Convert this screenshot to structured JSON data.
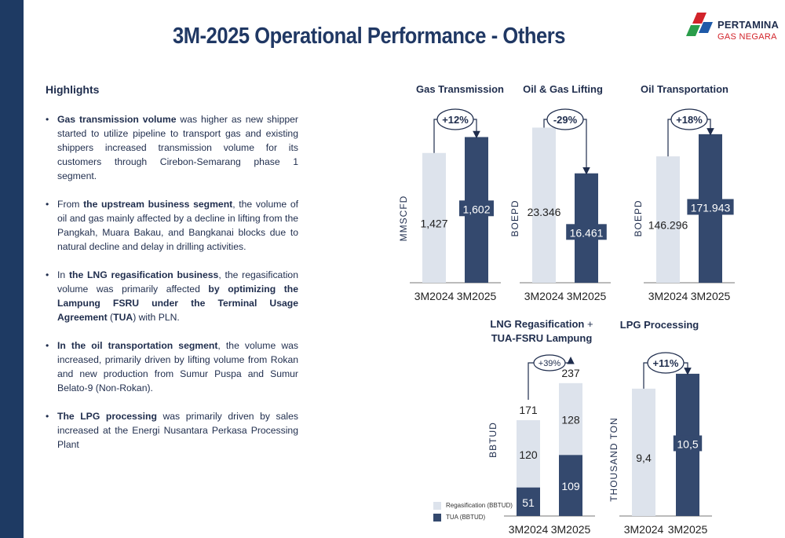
{
  "page": {
    "title": "3M-2025 Operational Performance - Others"
  },
  "logo": {
    "name": "PERTAMINA",
    "sub": "GAS NEGARA"
  },
  "highlights": {
    "title": "Highlights",
    "bullets": [
      {
        "bold": "Gas transmission volume",
        "text": " was higher as new shipper started to utilize pipeline to transport gas and existing shippers increased transmission volume for its customers through Cirebon-Semarang phase 1 segment."
      },
      {
        "pre": "From ",
        "bold": "the upstream business segment",
        "text": ", the volume of oil and gas mainly affected by a decline in lifting from the Pangkah, Muara Bakau, and Bangkanai blocks due to natural decline and delay in drilling activities."
      },
      {
        "pre": "In ",
        "bold": "the LNG regasification business",
        "text": ", the regasification volume was primarily affected ",
        "bold2": "by optimizing the Lampung FSRU under the Terminal Usage Agreement",
        "text2": " (",
        "bold3": "TUA",
        "text3": ") with PLN."
      },
      {
        "bold": "In the oil transportation segment",
        "text": ", the volume was increased, primarily driven by lifting volume from Rokan and new production from Sumur Puspa and Sumur Belato-9 (Non-Rokan)."
      },
      {
        "bold": "The LPG processing",
        "text": " was primarily driven by sales increased at the Energi Nusantara Perkasa Processing Plant"
      }
    ]
  },
  "colors": {
    "light_bar": "#dde3ec",
    "dark_bar": "#34496e",
    "sidebar": "#1e3a63",
    "text": "#1f2d4d"
  },
  "chart_data": [
    {
      "type": "bar",
      "title": "Gas Transmission",
      "ylabel": "MMSCFD",
      "categories": [
        "3M2024",
        "3M2025"
      ],
      "values": [
        1427,
        1602
      ],
      "value_labels": [
        "1,427",
        "1,602"
      ],
      "change_label": "+12%",
      "ylim": [
        0,
        1900
      ]
    },
    {
      "type": "bar",
      "title": "Oil & Gas Lifting",
      "ylabel": "BOEPD",
      "categories": [
        "3M2024",
        "3M2025"
      ],
      "values": [
        23346,
        16461
      ],
      "value_labels": [
        "23.346",
        "16.461"
      ],
      "change_label": "-29%",
      "ylim": [
        0,
        26000
      ]
    },
    {
      "type": "bar",
      "title": "Oil Transportation",
      "ylabel": "BOEPD",
      "categories": [
        "3M2024",
        "3M2025"
      ],
      "values": [
        146296,
        171943
      ],
      "value_labels": [
        "146.296",
        "171.943"
      ],
      "change_label": "+18%",
      "ylim": [
        0,
        200000
      ]
    },
    {
      "type": "bar",
      "stacked": true,
      "title": "LNG Regasification + TUA-FSRU Lampung",
      "title_parts": [
        "LNG Regasification",
        " + ",
        "TUA-FSRU Lampung"
      ],
      "ylabel": "BBTUD",
      "categories": [
        "3M2024",
        "3M2025"
      ],
      "series": [
        {
          "name": "TUA (BBTUD)",
          "values": [
            51,
            109
          ]
        },
        {
          "name": "Regasification (BBTUD)",
          "values": [
            120,
            128
          ]
        }
      ],
      "totals": [
        171,
        237
      ],
      "change_label": "+39%",
      "ylim": [
        0,
        290
      ]
    },
    {
      "type": "bar",
      "title": "LPG Processing",
      "ylabel": "THOUSAND TON",
      "categories": [
        "3M2024",
        "3M2025"
      ],
      "values": [
        9.4,
        10.5
      ],
      "value_labels": [
        "9,4",
        "10,5"
      ],
      "change_label": "+11%",
      "ylim": [
        0,
        12.0
      ]
    }
  ]
}
